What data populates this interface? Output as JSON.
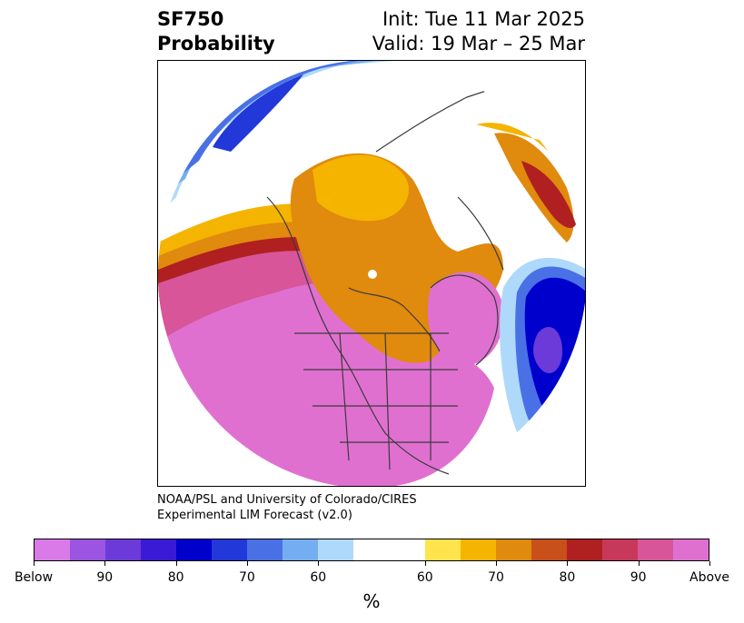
{
  "header": {
    "title_line1": "SF750",
    "title_line2": "Probability",
    "init": "Init: Tue 11 Mar 2025",
    "valid": "Valid: 19 Mar – 25 Mar"
  },
  "credit": {
    "line1": "NOAA/PSL and University of Colorado/CIRES",
    "line2": "Experimental LIM Forecast (v2.0)"
  },
  "colorbar": {
    "unit": "%",
    "colors": [
      "#d97ae8",
      "#9b55e0",
      "#6b3ad9",
      "#3a1ad6",
      "#0000cc",
      "#2238d9",
      "#4a70e6",
      "#75aef0",
      "#aed9fa",
      "#ffffff",
      "#ffe44d",
      "#f4b400",
      "#e08a0e",
      "#c8501a",
      "#b02020",
      "#c8385a",
      "#d8559a",
      "#e070d0"
    ],
    "labels": [
      "Below",
      "90",
      "80",
      "70",
      "60",
      "60",
      "70",
      "80",
      "90",
      "Above"
    ]
  }
}
